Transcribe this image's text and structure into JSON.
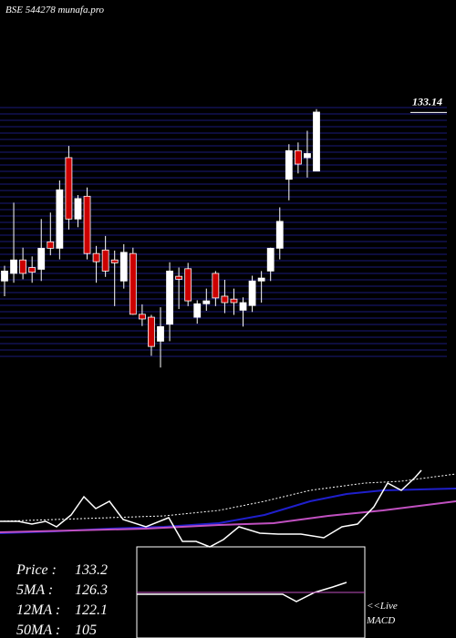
{
  "chart_data": {
    "type": "candlestick",
    "title": "BSE 544278 munafa.pro",
    "up_color": "#ffffff",
    "down_color": "#cc0000",
    "grid_color": "#1a1a7a",
    "ylim": [
      90,
      136
    ],
    "yticks": [
      133.14
    ],
    "open": [
      104.3,
      105.6,
      107.9,
      106.6,
      106.3,
      111.0,
      109.9,
      125.4,
      114.9,
      118.8,
      109.0,
      109.6,
      107.9,
      104.3,
      109.0,
      98.6,
      98.1,
      94.0,
      96.9,
      105.1,
      106.4,
      98.1,
      100.4,
      105.6,
      101.7,
      101.2,
      99.3,
      100.1,
      104.3,
      106.0,
      109.9,
      121.7,
      126.6,
      125.4,
      123.1
    ],
    "high": [
      106.9,
      117.7,
      110.0,
      108.5,
      114.9,
      116.0,
      121.5,
      127.4,
      119.0,
      120.3,
      110.3,
      112.0,
      109.5,
      110.6,
      110.0,
      100.3,
      98.5,
      99.8,
      107.5,
      106.6,
      107.4,
      101.0,
      103.0,
      106.0,
      104.5,
      103.0,
      101.5,
      105.2,
      106.0,
      110.0,
      116.9,
      127.7,
      128.0,
      130.0,
      133.7
    ],
    "low": [
      101.7,
      104.0,
      104.6,
      104.0,
      104.3,
      108.7,
      108.0,
      113.1,
      113.5,
      108.0,
      104.0,
      105.0,
      100.0,
      103.0,
      98.5,
      96.6,
      91.5,
      89.5,
      94.0,
      99.5,
      100.0,
      97.0,
      99.2,
      100.0,
      98.8,
      98.5,
      96.5,
      99.0,
      100.6,
      104.3,
      108.0,
      118.1,
      122.7,
      122.0,
      123.1
    ],
    "close": [
      106.0,
      107.9,
      105.6,
      105.8,
      109.9,
      109.9,
      119.9,
      114.9,
      118.4,
      109.0,
      107.6,
      106.0,
      107.4,
      109.2,
      98.6,
      97.8,
      93.1,
      96.5,
      106.0,
      104.6,
      100.9,
      100.4,
      100.9,
      101.4,
      100.6,
      100.6,
      100.6,
      104.3,
      104.8,
      109.9,
      114.5,
      126.6,
      124.3,
      126.1,
      133.2
    ],
    "stats": [
      {
        "label": "Price    :",
        "value": 133.2
      },
      {
        "label": "5MA :",
        "value": 126.3
      },
      {
        "label": "12MA :",
        "value": 122.1
      },
      {
        "label": "50MA :",
        "value": 105
      }
    ],
    "macd_label": [
      "<<Live",
      "MACD"
    ]
  }
}
